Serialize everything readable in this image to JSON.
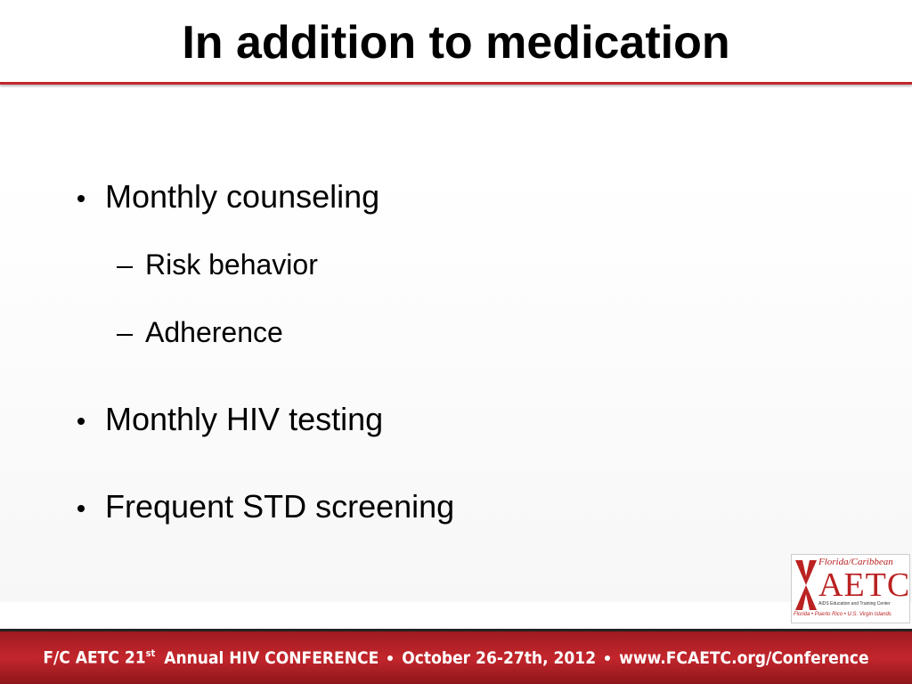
{
  "slide": {
    "title": "In addition to medication",
    "bullets": [
      {
        "text": "Monthly counseling",
        "sub": [
          "Risk behavior",
          "Adherence"
        ]
      },
      {
        "text": "Monthly HIV testing",
        "sub": []
      },
      {
        "text": "Frequent STD screening",
        "sub": []
      }
    ],
    "logo": {
      "top": "Florida/Caribbean",
      "name": "AETC",
      "subtitle": "AIDS Education and Training Center",
      "regions": "Florida • Puerto Rico • U.S. Virgin Islands"
    },
    "footer": {
      "part1": "F/C AETC 21",
      "sup": "st",
      "part2": "Annual HIV CONFERENCE",
      "part3": "October 26-27th, 2012",
      "part4": "www.FCAETC.org/Conference"
    }
  }
}
